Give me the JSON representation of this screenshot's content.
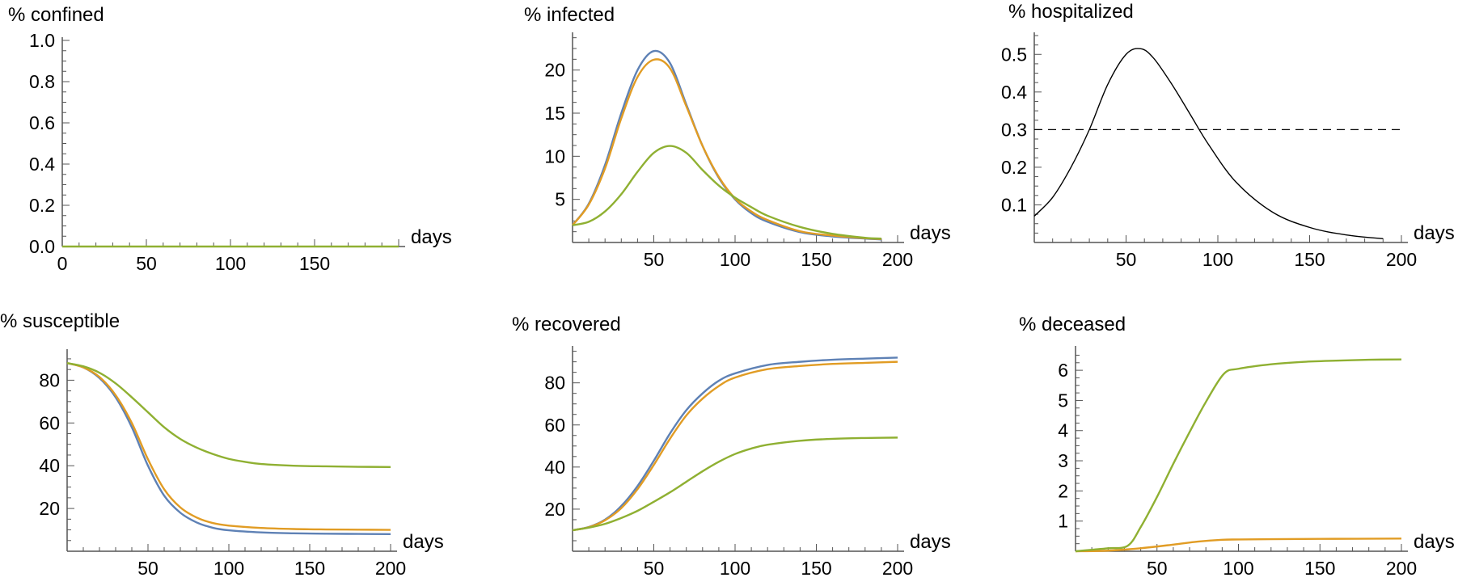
{
  "colors": {
    "blue": "#5e81b5",
    "orange": "#e19c24",
    "green": "#8fb032",
    "black": "#000000"
  },
  "chart_data": [
    {
      "type": "line",
      "title": "% confined",
      "xlabel": "days",
      "xlim": [
        0,
        200
      ],
      "ylim": [
        0,
        1.0
      ],
      "xticks": [
        0,
        50,
        100,
        150
      ],
      "xtick_labels": [
        "0",
        "50",
        "100",
        "150"
      ],
      "yticks": [
        0,
        0.2,
        0.4,
        0.6,
        0.8,
        1.0
      ],
      "ytick_labels": [
        "0.0",
        "0.2",
        "0.4",
        "0.6",
        "0.8",
        "1.0"
      ],
      "series": [
        {
          "color": "green",
          "x": [
            0,
            200
          ],
          "y": [
            0,
            0
          ]
        }
      ]
    },
    {
      "type": "line",
      "title": "% infected",
      "xlabel": "days",
      "xlim": [
        0,
        200
      ],
      "ylim": [
        0,
        24
      ],
      "xticks": [
        50,
        100,
        150,
        200
      ],
      "xtick_labels": [
        "50",
        "100",
        "150",
        "200"
      ],
      "yticks": [
        5,
        10,
        15,
        20
      ],
      "ytick_labels": [
        "5",
        "10",
        "15",
        "20"
      ],
      "series": [
        {
          "color": "blue",
          "x": [
            0,
            10,
            20,
            30,
            40,
            50,
            60,
            70,
            80,
            90,
            100,
            110,
            120,
            140,
            160,
            180,
            190
          ],
          "y": [
            2,
            4.5,
            9,
            15,
            20,
            22.2,
            20.8,
            16,
            11.2,
            7.5,
            5,
            3.4,
            2.4,
            1.2,
            0.7,
            0.45,
            0.35
          ]
        },
        {
          "color": "orange",
          "x": [
            0,
            10,
            20,
            30,
            40,
            50,
            60,
            70,
            80,
            90,
            100,
            110,
            120,
            140,
            160,
            180,
            190
          ],
          "y": [
            2,
            4.4,
            8.6,
            14.4,
            19.2,
            21.2,
            20.2,
            15.8,
            11.2,
            7.6,
            5.1,
            3.6,
            2.6,
            1.3,
            0.8,
            0.5,
            0.4
          ]
        },
        {
          "color": "green",
          "x": [
            0,
            10,
            20,
            30,
            40,
            50,
            60,
            70,
            80,
            90,
            100,
            110,
            120,
            140,
            160,
            180,
            190
          ],
          "y": [
            2,
            2.4,
            3.6,
            5.6,
            8.2,
            10.4,
            11.2,
            10.4,
            8.4,
            6.6,
            5.2,
            4.1,
            3.1,
            1.8,
            1.0,
            0.55,
            0.45
          ]
        }
      ]
    },
    {
      "type": "line",
      "title": "% hospitalized",
      "xlabel": "days",
      "xlim": [
        0,
        200
      ],
      "ylim": [
        0,
        0.55
      ],
      "xticks": [
        50,
        100,
        150,
        200
      ],
      "xtick_labels": [
        "50",
        "100",
        "150",
        "200"
      ],
      "yticks": [
        0.1,
        0.2,
        0.3,
        0.4,
        0.5
      ],
      "ytick_labels": [
        "0.1",
        "0.2",
        "0.3",
        "0.4",
        "0.5"
      ],
      "series": [
        {
          "color": "black",
          "x": [
            0,
            10,
            20,
            30,
            40,
            50,
            58,
            65,
            75,
            85,
            95,
            110,
            130,
            150,
            170,
            190
          ],
          "y": [
            0.07,
            0.12,
            0.2,
            0.3,
            0.42,
            0.5,
            0.515,
            0.49,
            0.42,
            0.34,
            0.26,
            0.16,
            0.08,
            0.04,
            0.02,
            0.01
          ]
        }
      ],
      "hlines": [
        {
          "y": 0.3,
          "style": "dashed",
          "x": [
            0,
            200
          ]
        }
      ]
    },
    {
      "type": "line",
      "title": "% susceptible",
      "xlabel": "days",
      "xlim": [
        0,
        200
      ],
      "ylim": [
        0,
        93
      ],
      "xticks": [
        50,
        100,
        150,
        200
      ],
      "xtick_labels": [
        "50",
        "100",
        "150",
        "200"
      ],
      "yticks": [
        20,
        40,
        60,
        80
      ],
      "ytick_labels": [
        "20",
        "40",
        "60",
        "80"
      ],
      "series": [
        {
          "color": "blue",
          "x": [
            0,
            10,
            20,
            30,
            40,
            50,
            60,
            70,
            80,
            90,
            100,
            120,
            140,
            160,
            180,
            200
          ],
          "y": [
            88,
            86,
            81,
            72,
            58,
            40,
            26,
            18,
            13.5,
            11,
            9.8,
            8.8,
            8.4,
            8.2,
            8.1,
            8
          ]
        },
        {
          "color": "orange",
          "x": [
            0,
            10,
            20,
            30,
            40,
            50,
            60,
            70,
            80,
            90,
            100,
            120,
            140,
            160,
            180,
            200
          ],
          "y": [
            88,
            86,
            81.5,
            73,
            60,
            43,
            29,
            20.5,
            15.8,
            13.2,
            12,
            10.9,
            10.4,
            10.2,
            10.1,
            10
          ]
        },
        {
          "color": "green",
          "x": [
            0,
            10,
            20,
            30,
            40,
            50,
            60,
            70,
            80,
            90,
            100,
            110,
            120,
            140,
            160,
            180,
            200
          ],
          "y": [
            88,
            86.5,
            83.5,
            78.5,
            72,
            65,
            58,
            52.5,
            48.5,
            45.5,
            43.2,
            41.8,
            40.8,
            40,
            39.7,
            39.5,
            39.4
          ]
        }
      ]
    },
    {
      "type": "line",
      "title": "% recovered",
      "xlabel": "days",
      "xlim": [
        0,
        200
      ],
      "ylim": [
        0,
        96
      ],
      "xticks": [
        50,
        100,
        150,
        200
      ],
      "xtick_labels": [
        "50",
        "100",
        "150",
        "200"
      ],
      "yticks": [
        20,
        40,
        60,
        80
      ],
      "ytick_labels": [
        "20",
        "40",
        "60",
        "80"
      ],
      "series": [
        {
          "color": "blue",
          "x": [
            0,
            10,
            20,
            30,
            40,
            50,
            60,
            70,
            80,
            90,
            100,
            120,
            140,
            160,
            180,
            200
          ],
          "y": [
            10,
            11.5,
            15,
            21.5,
            31,
            43,
            56,
            67,
            75,
            81,
            84.5,
            88.5,
            90,
            91,
            91.5,
            92
          ]
        },
        {
          "color": "orange",
          "x": [
            0,
            10,
            20,
            30,
            40,
            50,
            60,
            70,
            80,
            90,
            100,
            120,
            140,
            160,
            180,
            200
          ],
          "y": [
            10,
            11.4,
            14.7,
            20.5,
            29.5,
            41,
            53.5,
            64.5,
            72.5,
            78.5,
            82.5,
            86.5,
            88,
            89,
            89.5,
            90
          ]
        },
        {
          "color": "green",
          "x": [
            0,
            10,
            20,
            30,
            40,
            50,
            60,
            70,
            80,
            90,
            100,
            110,
            120,
            140,
            160,
            180,
            200
          ],
          "y": [
            10,
            11.2,
            13,
            15.8,
            19.2,
            23.5,
            28,
            33,
            38,
            42.5,
            46.2,
            48.8,
            50.6,
            52.5,
            53.4,
            53.8,
            54
          ]
        }
      ]
    },
    {
      "type": "line",
      "title": "% deceased",
      "xlabel": "days",
      "xlim": [
        0,
        200
      ],
      "ylim": [
        0,
        6.7
      ],
      "xticks": [
        50,
        100,
        150,
        200
      ],
      "xtick_labels": [
        "50",
        "100",
        "150",
        "200"
      ],
      "yticks": [
        1,
        2,
        3,
        4,
        5,
        6
      ],
      "ytick_labels": [
        "1",
        "2",
        "3",
        "4",
        "5",
        "6"
      ],
      "series": [
        {
          "color": "orange",
          "x": [
            0,
            20,
            40,
            60,
            75,
            90,
            100,
            120,
            150,
            200
          ],
          "y": [
            0,
            0.02,
            0.1,
            0.22,
            0.32,
            0.38,
            0.39,
            0.4,
            0.41,
            0.42
          ]
        },
        {
          "color": "green",
          "x": [
            0,
            10,
            20,
            32,
            40,
            50,
            60,
            70,
            80,
            91,
            100,
            120,
            140,
            160,
            180,
            200
          ],
          "y": [
            0,
            0.05,
            0.1,
            0.18,
            0.8,
            1.8,
            2.9,
            3.95,
            4.95,
            5.88,
            6.05,
            6.2,
            6.28,
            6.32,
            6.35,
            6.36
          ]
        }
      ]
    }
  ]
}
